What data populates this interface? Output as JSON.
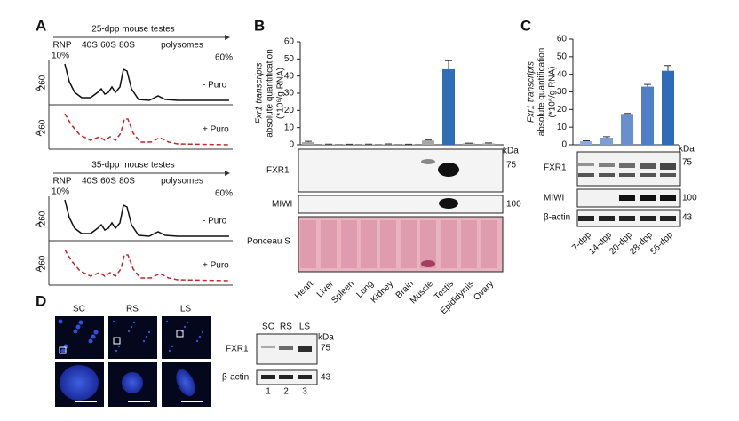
{
  "panel_a": {
    "label": "A",
    "profiles": [
      {
        "title": "25-dpp mouse testes",
        "fractions": [
          "RNP",
          "40S",
          "60S",
          "80S",
          "polysomes"
        ],
        "gradient_start": "10%",
        "gradient_end": "60%",
        "y_label": [
          "A",
          "260"
        ],
        "conditions": [
          "- Puro",
          "+ Puro"
        ]
      },
      {
        "title": "35-dpp mouse testes",
        "fractions": [
          "RNP",
          "40S",
          "60S",
          "80S",
          "polysomes"
        ],
        "gradient_start": "10%",
        "gradient_end": "60%",
        "y_label": [
          "A",
          "260"
        ],
        "conditions": [
          "- Puro",
          "+ Puro"
        ]
      }
    ]
  },
  "panel_b": {
    "label": "B",
    "chart": {
      "type": "bar",
      "y_label_lines": [
        "Fxr1 transcripts",
        "absolute quantification",
        "(*10⁶/g RNA)"
      ],
      "categories": [
        "Heart",
        "Liver",
        "Spleen",
        "Lung",
        "Kidney",
        "Brain",
        "Muscle",
        "Testis",
        "Epididymis",
        "Ovary"
      ],
      "values": [
        1.5,
        0.3,
        0.2,
        0.3,
        0.3,
        0.2,
        2.5,
        44,
        0.8,
        0.8
      ],
      "errors": [
        0.5,
        0.1,
        0.1,
        0.1,
        0.2,
        0.1,
        0.3,
        5,
        0.2,
        0.3
      ],
      "colors": [
        "#a6a6a6",
        "#a6a6a6",
        "#a6a6a6",
        "#a6a6a6",
        "#a6a6a6",
        "#a6a6a6",
        "#a6a6a6",
        "#2f6db5",
        "#a6a6a6",
        "#a6a6a6"
      ],
      "ylim": [
        0,
        60
      ],
      "yticks": [
        0,
        10,
        20,
        30,
        40,
        50,
        60
      ]
    },
    "blots": {
      "unit": "kDa",
      "rows": [
        {
          "name": "FXR1",
          "marker": "75"
        },
        {
          "name": "MIWI",
          "marker": "100"
        },
        {
          "name": "Ponceau S"
        }
      ]
    }
  },
  "panel_c": {
    "label": "C",
    "chart": {
      "type": "bar",
      "y_label_lines": [
        "Fxr1 transcripts",
        "absolute quantification",
        "(*10⁶/g RNA)"
      ],
      "categories": [
        "7-dpp",
        "14-dpp",
        "20-dpp",
        "28-dpp",
        "56-dpp"
      ],
      "values": [
        2,
        4,
        17.5,
        33,
        42
      ],
      "errors": [
        0.3,
        0.6,
        0.3,
        1.2,
        3
      ],
      "colors": [
        "#8eaadb",
        "#7b9ed6",
        "#6a8fce",
        "#4f7fc7",
        "#2e6cba"
      ],
      "ylim": [
        0,
        60
      ],
      "yticks": [
        0,
        10,
        20,
        30,
        40,
        50,
        60
      ]
    },
    "blots": {
      "unit": "kDa",
      "rows": [
        {
          "name": "FXR1",
          "marker": "75"
        },
        {
          "name": "MIWI",
          "marker": "100"
        },
        {
          "name": "β-actin",
          "marker": "43"
        }
      ]
    }
  },
  "panel_d": {
    "label": "D",
    "images": [
      "SC",
      "RS",
      "LS"
    ],
    "blot": {
      "lanes": [
        "SC",
        "RS",
        "LS"
      ],
      "unit": "kDa",
      "rows": [
        {
          "name": "FXR1",
          "marker": "75"
        },
        {
          "name": "β-actin",
          "marker": "43"
        }
      ],
      "lane_numbers": [
        "1",
        "2",
        "3"
      ]
    }
  }
}
